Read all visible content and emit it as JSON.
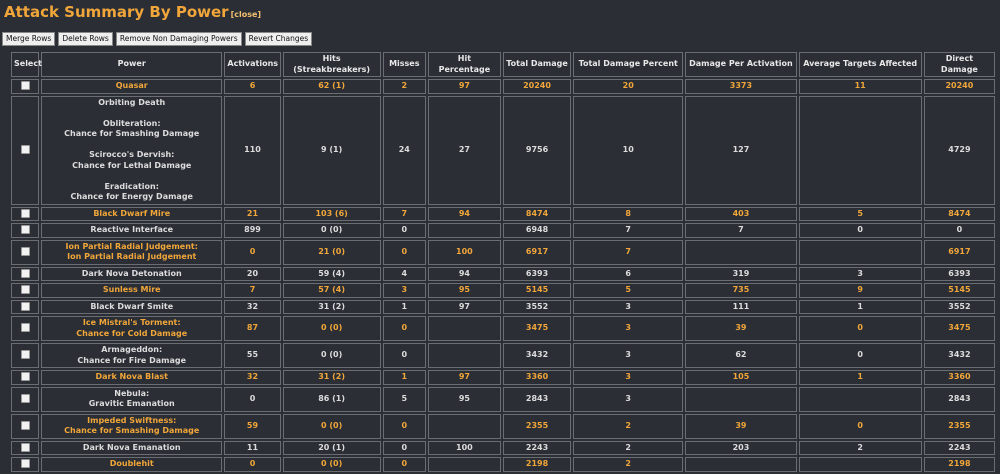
{
  "header": {
    "title": "Attack Summary By Power",
    "close": "[close]"
  },
  "buttons": [
    "Merge Rows",
    "Delete Rows",
    "Remove Non Damaging Powers",
    "Revert Changes"
  ],
  "table": {
    "columns": [
      "Select",
      "Power",
      "Activations",
      "Hits (Streakbreakers)",
      "Misses",
      "Hit Percentage",
      "Total Damage",
      "Total Damage Percent",
      "Damage Per Activation",
      "Average Targets Affected",
      "Direct Damage"
    ],
    "rows": [
      {
        "highlight": true,
        "power": [
          [
            "Quasar"
          ]
        ],
        "values": [
          6,
          "62 (1)",
          2,
          97,
          20240,
          20,
          3373,
          11,
          20240
        ]
      },
      {
        "highlight": false,
        "power": [
          [
            "Orbiting Death"
          ],
          [
            "Obliteration:",
            "Chance for Smashing Damage"
          ],
          [
            "Scirocco's Dervish:",
            "Chance for Lethal Damage"
          ],
          [
            "Eradication:",
            "Chance for Energy Damage"
          ]
        ],
        "values": [
          110,
          "9 (1)",
          24,
          27,
          9756,
          10,
          127,
          null,
          4729
        ]
      },
      {
        "highlight": true,
        "power": [
          [
            "Black Dwarf Mire"
          ]
        ],
        "values": [
          21,
          "103 (6)",
          7,
          94,
          8474,
          8,
          403,
          5,
          8474
        ]
      },
      {
        "highlight": false,
        "power": [
          [
            "Reactive Interface"
          ]
        ],
        "values": [
          899,
          "0 (0)",
          0,
          null,
          6948,
          7,
          7,
          0,
          0
        ]
      },
      {
        "highlight": true,
        "power": [
          [
            "Ion Partial Radial Judgement:",
            "Ion Partial Radial Judgement"
          ]
        ],
        "values": [
          0,
          "21 (0)",
          0,
          100,
          6917,
          7,
          null,
          null,
          6917
        ]
      },
      {
        "highlight": false,
        "power": [
          [
            "Dark Nova Detonation"
          ]
        ],
        "values": [
          20,
          "59 (4)",
          4,
          94,
          6393,
          6,
          319,
          3,
          6393
        ]
      },
      {
        "highlight": true,
        "power": [
          [
            "Sunless Mire"
          ]
        ],
        "values": [
          7,
          "57 (4)",
          3,
          95,
          5145,
          5,
          735,
          9,
          5145
        ]
      },
      {
        "highlight": false,
        "power": [
          [
            "Black Dwarf Smite"
          ]
        ],
        "values": [
          32,
          "31 (2)",
          1,
          97,
          3552,
          3,
          111,
          1,
          3552
        ]
      },
      {
        "highlight": true,
        "power": [
          [
            "Ice Mistral's Torment:",
            "Chance for Cold Damage"
          ]
        ],
        "values": [
          87,
          "0 (0)",
          0,
          null,
          3475,
          3,
          39,
          0,
          3475
        ]
      },
      {
        "highlight": false,
        "power": [
          [
            "Armageddon:",
            "Chance for Fire Damage"
          ]
        ],
        "values": [
          55,
          "0 (0)",
          0,
          null,
          3432,
          3,
          62,
          0,
          3432
        ]
      },
      {
        "highlight": true,
        "power": [
          [
            "Dark Nova Blast"
          ]
        ],
        "values": [
          32,
          "31 (2)",
          1,
          97,
          3360,
          3,
          105,
          1,
          3360
        ]
      },
      {
        "highlight": false,
        "power": [
          [
            "Nebula:",
            "Gravitic Emanation"
          ]
        ],
        "values": [
          0,
          "86 (1)",
          5,
          95,
          2843,
          3,
          null,
          null,
          2843
        ]
      },
      {
        "highlight": true,
        "power": [
          [
            "Impeded Swiftness:",
            "Chance for Smashing Damage"
          ]
        ],
        "values": [
          59,
          "0 (0)",
          0,
          null,
          2355,
          2,
          39,
          0,
          2355
        ]
      },
      {
        "highlight": false,
        "power": [
          [
            "Dark Nova Emanation"
          ]
        ],
        "values": [
          11,
          "20 (1)",
          0,
          100,
          2243,
          2,
          203,
          2,
          2243
        ]
      },
      {
        "highlight": true,
        "power": [
          [
            "Doublehit"
          ]
        ],
        "values": [
          0,
          "0 (0)",
          0,
          null,
          2198,
          2,
          null,
          null,
          2198
        ]
      }
    ]
  }
}
